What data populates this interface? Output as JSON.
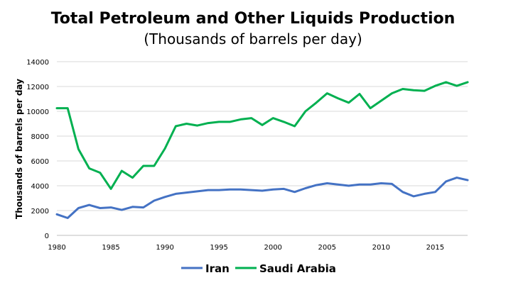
{
  "chart_data": {
    "type": "line",
    "title": "Total Petroleum and Other Liquids Production",
    "subtitle": "(Thousands of barrels per day)",
    "xlabel": "",
    "ylabel": "Thousands of barrels per day",
    "xlim": [
      1980,
      2018
    ],
    "ylim": [
      0,
      14000
    ],
    "xticks": [
      1980,
      1985,
      1990,
      1995,
      2000,
      2005,
      2010,
      2015
    ],
    "yticks": [
      0,
      2000,
      4000,
      6000,
      8000,
      10000,
      12000,
      14000
    ],
    "grid": "horizontal",
    "legend_position": "bottom",
    "x": [
      1980,
      1981,
      1982,
      1983,
      1984,
      1985,
      1986,
      1987,
      1988,
      1989,
      1990,
      1991,
      1992,
      1993,
      1994,
      1995,
      1996,
      1997,
      1998,
      1999,
      2000,
      2001,
      2002,
      2003,
      2004,
      2005,
      2006,
      2007,
      2008,
      2009,
      2010,
      2011,
      2012,
      2013,
      2014,
      2015,
      2016,
      2017,
      2018
    ],
    "series": [
      {
        "name": "Iran",
        "color": "#4472c4",
        "values": [
          1700,
          1400,
          2200,
          2450,
          2200,
          2250,
          2050,
          2300,
          2250,
          2800,
          3100,
          3350,
          3450,
          3550,
          3650,
          3650,
          3700,
          3700,
          3650,
          3600,
          3700,
          3750,
          3500,
          3800,
          4050,
          4200,
          4100,
          4000,
          4100,
          4100,
          4200,
          4150,
          3500,
          3150,
          3350,
          3500,
          4350,
          4650,
          4450
        ]
      },
      {
        "name": "Saudi Arabia",
        "color": "#00b050",
        "values": [
          10250,
          10250,
          6950,
          5400,
          5050,
          3750,
          5200,
          4650,
          5600,
          5600,
          7000,
          8800,
          9000,
          8850,
          9050,
          9150,
          9150,
          9350,
          9450,
          8900,
          9450,
          9150,
          8800,
          10000,
          10700,
          11450,
          11050,
          10700,
          11400,
          10250,
          10850,
          11450,
          11800,
          11700,
          11650,
          12050,
          12350,
          12050,
          12350
        ]
      }
    ]
  }
}
